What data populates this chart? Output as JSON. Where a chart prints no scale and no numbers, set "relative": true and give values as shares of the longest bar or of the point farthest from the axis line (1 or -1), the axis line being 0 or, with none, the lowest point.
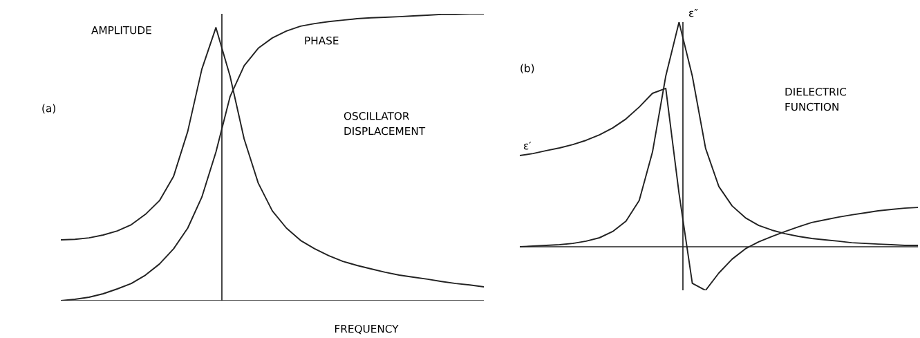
{
  "chart_data": [
    {
      "type": "line",
      "relative": true,
      "xlabel": "FREQUENCY",
      "categories": [
        null,
        null,
        null,
        null,
        null,
        null,
        null,
        null,
        null,
        null,
        null,
        null,
        null,
        null,
        null,
        null,
        null,
        null,
        null,
        null,
        null,
        null,
        null,
        null,
        null,
        null,
        null,
        null,
        null,
        null,
        null
      ],
      "series": [
        {
          "color": "#222222",
          "values": [
            0.212,
            0.214,
            0.219,
            0.229,
            0.243,
            0.265,
            0.301,
            0.349,
            0.434,
            0.59,
            0.807,
            0.952,
            0.783,
            0.564,
            0.41,
            0.313,
            0.253,
            0.21,
            0.181,
            0.157,
            0.137,
            0.123,
            0.111,
            0.099,
            0.089,
            0.082,
            0.075,
            0.067,
            0.06,
            0.055,
            0.048
          ]
        },
        {
          "color": "#222222",
          "values": [
            0.0,
            0.005,
            0.012,
            0.024,
            0.041,
            0.06,
            0.089,
            0.128,
            0.181,
            0.253,
            0.361,
            0.518,
            0.711,
            0.819,
            0.88,
            0.916,
            0.94,
            0.957,
            0.966,
            0.973,
            0.978,
            0.983,
            0.986,
            0.988,
            0.99,
            0.993,
            0.995,
            0.998,
            0.998,
            1.0,
            1.0
          ]
        }
      ],
      "annotations": [
        "(a)",
        "AMPLITUDE",
        "PHASE",
        "OSCILLATOR\nDISPLACEMENT"
      ]
    },
    {
      "type": "line",
      "relative": true,
      "categories": [
        null,
        null,
        null,
        null,
        null,
        null,
        null,
        null,
        null,
        null,
        null,
        null,
        null,
        null,
        null,
        null,
        null,
        null,
        null,
        null,
        null,
        null,
        null,
        null,
        null,
        null,
        null,
        null,
        null,
        null,
        null
      ],
      "series": [
        {
          "color": "#222222",
          "values": [
            0.406,
            0.415,
            0.428,
            0.44,
            0.455,
            0.474,
            0.498,
            0.529,
            0.569,
            0.622,
            0.683,
            0.705,
            0.237,
            -0.163,
            -0.194,
            -0.117,
            -0.055,
            -0.009,
            0.022,
            0.046,
            0.068,
            0.089,
            0.108,
            0.12,
            0.132,
            0.142,
            0.151,
            0.16,
            0.166,
            0.172,
            0.175
          ]
        },
        {
          "color": "#222222",
          "values": [
            0.0,
            0.003,
            0.006,
            0.009,
            0.015,
            0.025,
            0.04,
            0.068,
            0.114,
            0.206,
            0.422,
            0.76,
            1.0,
            0.76,
            0.438,
            0.268,
            0.182,
            0.129,
            0.095,
            0.074,
            0.058,
            0.046,
            0.037,
            0.031,
            0.025,
            0.018,
            0.015,
            0.012,
            0.009,
            0.006,
            0.006
          ]
        }
      ],
      "annotations": [
        "(b)",
        "ε′",
        "ε″",
        "DIELECTRIC\nFUNCTION"
      ]
    }
  ]
}
